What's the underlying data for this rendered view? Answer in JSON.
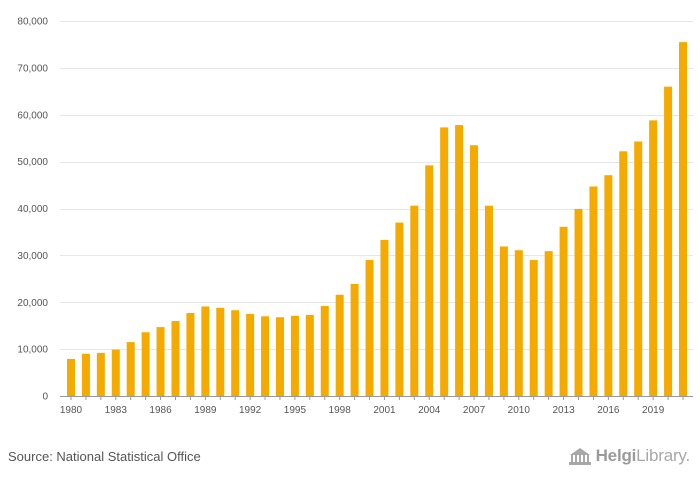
{
  "chart_data": {
    "type": "bar",
    "title": "",
    "xlabel": "",
    "ylabel": "",
    "ylim": [
      0,
      80000
    ],
    "yticks": [
      0,
      10000,
      20000,
      30000,
      40000,
      50000,
      60000,
      70000,
      80000
    ],
    "ytick_labels": [
      "0",
      "10,000",
      "20,000",
      "30,000",
      "40,000",
      "50,000",
      "60,000",
      "70,000",
      "80,000"
    ],
    "xtick_labels": [
      "1980",
      "1983",
      "1986",
      "1989",
      "1992",
      "1995",
      "1998",
      "2001",
      "2004",
      "2007",
      "2010",
      "2013",
      "2016",
      "2019"
    ],
    "grid": true,
    "bar_color": "#f5aa00",
    "categories": [
      "1980",
      "1981",
      "1982",
      "1983",
      "1984",
      "1985",
      "1986",
      "1987",
      "1988",
      "1989",
      "1990",
      "1991",
      "1992",
      "1993",
      "1994",
      "1995",
      "1996",
      "1997",
      "1998",
      "1999",
      "2000",
      "2001",
      "2002",
      "2003",
      "2004",
      "2005",
      "2006",
      "2007",
      "2008",
      "2009",
      "2010",
      "2011",
      "2012",
      "2013",
      "2014",
      "2015",
      "2016",
      "2017",
      "2018",
      "2019",
      "2020",
      "2021"
    ],
    "values": [
      7900,
      9000,
      9200,
      9900,
      11500,
      13600,
      14700,
      16000,
      17700,
      19100,
      18800,
      18300,
      17500,
      17000,
      16800,
      17100,
      17300,
      19200,
      21600,
      23900,
      29000,
      33300,
      37000,
      40600,
      49200,
      57300,
      57800,
      53500,
      40600,
      31900,
      31100,
      29000,
      30900,
      36100,
      39900,
      44700,
      47100,
      52200,
      54300,
      58800,
      66000,
      75500
    ]
  },
  "footer": {
    "source": "Source: National Statistical Office",
    "logo_part1": "Helgi",
    "logo_part2": "Library."
  }
}
